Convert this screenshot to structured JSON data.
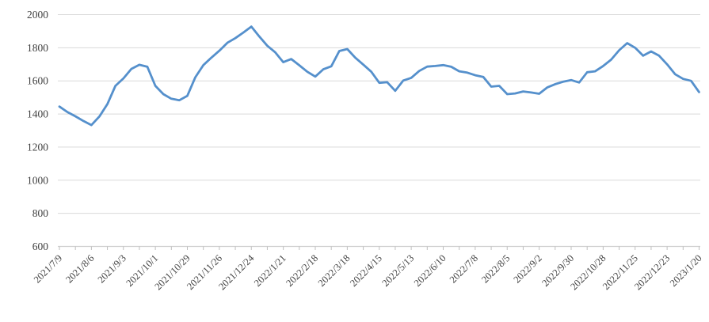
{
  "chart_data": {
    "type": "line",
    "title": "",
    "xlabel": "",
    "ylabel": "",
    "ylim": [
      600,
      2000
    ],
    "ytick_step": 200,
    "yticks": [
      600,
      800,
      1000,
      1200,
      1400,
      1600,
      1800,
      2000
    ],
    "grid": "horizontal",
    "legend": "none",
    "x_labels": [
      "2021/7/9",
      "2021/8/6",
      "2021/9/3",
      "2021/10/1",
      "2021/10/29",
      "2021/11/26",
      "2021/12/24",
      "2022/1/21",
      "2022/2/18",
      "2022/3/18",
      "2022/4/15",
      "2022/5/13",
      "2022/6/10",
      "2022/7/8",
      "2022/8/5",
      "2022/9/2",
      "2022/9/30",
      "2022/10/28",
      "2022/11/25",
      "2022/12/23",
      "2023/1/20"
    ],
    "points_per_label": 4,
    "minor_tick_every_points": 2,
    "series": [
      {
        "name": "value",
        "frequency": "weekly",
        "values": [
          1445,
          1412,
          1386,
          1358,
          1333,
          1385,
          1460,
          1570,
          1615,
          1672,
          1697,
          1685,
          1570,
          1520,
          1492,
          1483,
          1510,
          1622,
          1695,
          1740,
          1782,
          1830,
          1858,
          1892,
          1928,
          1868,
          1812,
          1772,
          1713,
          1732,
          1694,
          1655,
          1626,
          1670,
          1688,
          1780,
          1792,
          1740,
          1698,
          1655,
          1588,
          1592,
          1540,
          1602,
          1618,
          1660,
          1686,
          1690,
          1695,
          1685,
          1658,
          1650,
          1634,
          1624,
          1565,
          1570,
          1520,
          1524,
          1536,
          1530,
          1522,
          1560,
          1580,
          1595,
          1605,
          1590,
          1652,
          1658,
          1690,
          1728,
          1785,
          1828,
          1800,
          1752,
          1778,
          1752,
          1700,
          1640,
          1612,
          1600,
          1532
        ]
      }
    ]
  },
  "colors": {
    "line": "#5590CC",
    "gridline": "#D9D9D9",
    "axis_line": "#D0D0D0",
    "tick": "#BFBFBF",
    "label_text": "#404040",
    "background": "#FFFFFF"
  },
  "layout_text": {
    "y_axis_labels": [
      "600",
      "800",
      "1000",
      "1200",
      "1400",
      "1600",
      "1800",
      "2000"
    ]
  }
}
